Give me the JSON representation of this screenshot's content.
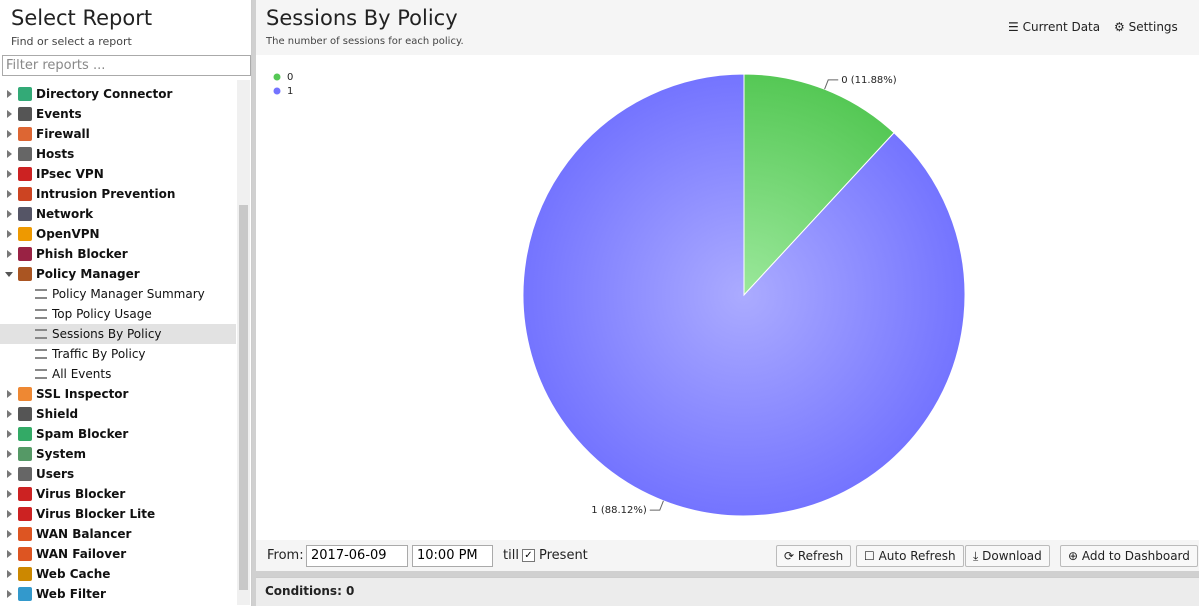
{
  "sidebar": {
    "title": "Select Report",
    "subtitle": "Find or select a report",
    "filter_placeholder": "Filter reports ...",
    "items": [
      {
        "label": "Directory Connector"
      },
      {
        "label": "Events"
      },
      {
        "label": "Firewall"
      },
      {
        "label": "Hosts"
      },
      {
        "label": "IPsec VPN"
      },
      {
        "label": "Intrusion Prevention"
      },
      {
        "label": "Network"
      },
      {
        "label": "OpenVPN"
      },
      {
        "label": "Phish Blocker"
      },
      {
        "label": "Policy Manager",
        "children": [
          "Policy Manager Summary",
          "Top Policy Usage",
          "Sessions By Policy",
          "Traffic By Policy",
          "All Events"
        ]
      },
      {
        "label": "SSL Inspector"
      },
      {
        "label": "Shield"
      },
      {
        "label": "Spam Blocker"
      },
      {
        "label": "System"
      },
      {
        "label": "Users"
      },
      {
        "label": "Virus Blocker"
      },
      {
        "label": "Virus Blocker Lite"
      },
      {
        "label": "WAN Balancer"
      },
      {
        "label": "WAN Failover"
      },
      {
        "label": "Web Cache"
      },
      {
        "label": "Web Filter"
      }
    ]
  },
  "header": {
    "current_data": "Current Data",
    "settings": "Settings"
  },
  "chart_data": {
    "type": "pie",
    "title": "Sessions By Policy",
    "subtitle": "The number of sessions for each policy.",
    "categories": [
      "0",
      "1"
    ],
    "values": [
      11.88,
      88.12
    ],
    "value_labels": [
      "0 (11.88%)",
      "1 (88.12%)"
    ],
    "colors": [
      "#55c855",
      "#7474ff"
    ],
    "legend": "top-left"
  },
  "toolbar": {
    "from": "From:",
    "date": "2017-06-09",
    "time": "10:00 PM",
    "till": "till",
    "present": "Present",
    "buttons": [
      "Refresh",
      "Auto Refresh",
      "Download",
      "Add to Dashboard"
    ]
  },
  "conditions": "Conditions: 0"
}
